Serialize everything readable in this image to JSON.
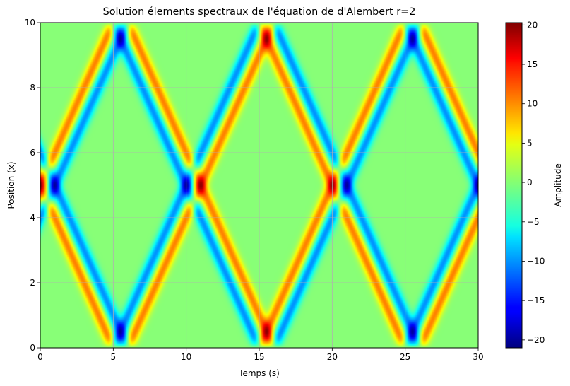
{
  "chart_data": {
    "type": "heatmap",
    "title": "Solution élements spectraux de l'équation de d'Alembert r=2",
    "xlabel": "Temps (s)",
    "ylabel": "Position (x)",
    "xlim": [
      0,
      30
    ],
    "ylim": [
      0,
      10
    ],
    "xticks": [
      0,
      5,
      10,
      15,
      20,
      25,
      30
    ],
    "xtick_labels": [
      "0",
      "5",
      "10",
      "15",
      "20",
      "25",
      "30"
    ],
    "yticks": [
      0,
      2,
      4,
      6,
      8,
      10
    ],
    "ytick_labels": [
      "0",
      "2",
      "4",
      "6",
      "8",
      "10"
    ],
    "grid": true,
    "colormap": "jet",
    "colorbar": {
      "label": "Amplitude",
      "range": [
        -21,
        20.3
      ],
      "ticks": [
        20,
        15,
        10,
        5,
        0,
        -5,
        -10,
        -15,
        -20
      ],
      "tick_labels": [
        "20",
        "15",
        "10",
        "5",
        "0",
        "−5",
        "−10",
        "−15",
        "−20"
      ]
    },
    "wave": {
      "domain_length": 10,
      "initial_center": 5,
      "speed": 1,
      "lobes": [
        {
          "offset_s": 0,
          "amplitude": 10
        },
        {
          "offset_s": 1,
          "amplitude": -10
        }
      ],
      "lobe_width": 0.3,
      "boundary": "fixed (odd reflection)",
      "max_amplitude": 20.3,
      "min_amplitude": -21
    }
  }
}
